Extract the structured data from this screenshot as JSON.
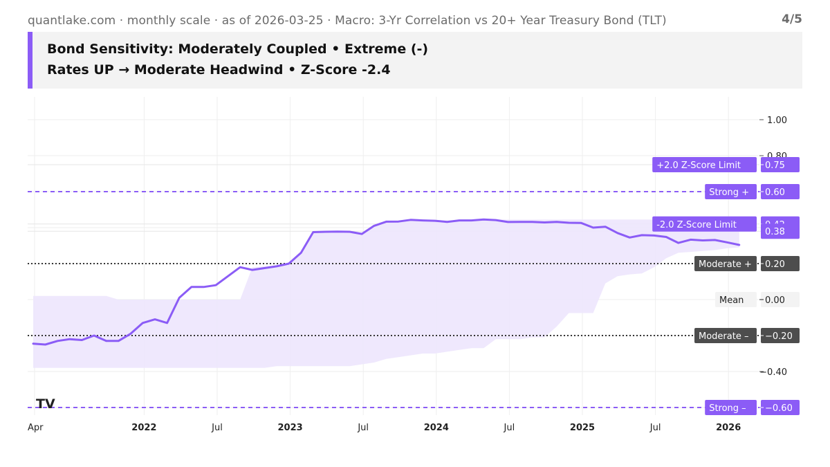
{
  "header": {
    "subtitle": "quantlake.com · monthly scale · as of 2026-03-25 · Macro: 3-Yr Correlation vs 20+ Year Treasury Bond (TLT)",
    "page": "4/5",
    "line1": "Bond Sensitivity: Moderately Coupled • Extreme (-)",
    "line2": "Rates UP → Moderate Headwind • Z-Score -2.4"
  },
  "colors": {
    "accent": "#8b5cf6",
    "line": "#8b5cf6",
    "band": "#ede6fd",
    "dark_label": "#4d4d4d",
    "grid": "#eeeeee"
  },
  "watermark": "TV",
  "chart_data": {
    "type": "line",
    "ylim": [
      -0.62,
      1.05
    ],
    "yticks": [
      {
        "v": 1.0,
        "label": "1.00"
      },
      {
        "v": 0.8,
        "label": "0.80"
      },
      {
        "v": -0.4,
        "label": "−0.40"
      }
    ],
    "xticks": [
      {
        "t": 0,
        "label": "Apr",
        "bold": false
      },
      {
        "t": 9,
        "label": "2022",
        "bold": true
      },
      {
        "t": 15,
        "label": "Jul",
        "bold": false
      },
      {
        "t": 21,
        "label": "2023",
        "bold": true
      },
      {
        "t": 27,
        "label": "Jul",
        "bold": false
      },
      {
        "t": 33,
        "label": "2024",
        "bold": true
      },
      {
        "t": 39,
        "label": "Jul",
        "bold": false
      },
      {
        "t": 45,
        "label": "2025",
        "bold": true
      },
      {
        "t": 51,
        "label": "Jul",
        "bold": false
      },
      {
        "t": 57,
        "label": "2026",
        "bold": true
      }
    ],
    "series": [
      {
        "t0": 0,
        "values": [
          -0.245,
          -0.25,
          -0.23,
          -0.22,
          -0.225,
          -0.2,
          -0.23,
          -0.23,
          -0.19,
          -0.13,
          -0.11,
          -0.13,
          0.01,
          0.07,
          0.07,
          0.08,
          0.13,
          0.18,
          0.165,
          0.175,
          0.185,
          0.2,
          0.26,
          0.375,
          0.377,
          0.378,
          0.377,
          0.365,
          0.41,
          0.433,
          0.434,
          0.443,
          0.44,
          0.438,
          0.432,
          0.44,
          0.44,
          0.445,
          0.442,
          0.431,
          0.432,
          0.432,
          0.429,
          0.432,
          0.427,
          0.426,
          0.4,
          0.405,
          0.37,
          0.345,
          0.358,
          0.356,
          0.348,
          0.315,
          0.333,
          0.329,
          0.331,
          0.318,
          0.304
        ]
      }
    ],
    "band": {
      "t0": 0,
      "upper": [
        0.02,
        0.02,
        0.02,
        0.02,
        0.02,
        0.02,
        0.02,
        0.0,
        0.0,
        0.0,
        0.0,
        0.0,
        0.0,
        0.0,
        0.0,
        0.0,
        0.0,
        0.0,
        0.18,
        0.185,
        0.19,
        0.2,
        0.26,
        0.375,
        0.377,
        0.378,
        0.377,
        0.365,
        0.41,
        0.433,
        0.434,
        0.443,
        0.44,
        0.44,
        0.44,
        0.44,
        0.44,
        0.445,
        0.445,
        0.445,
        0.445,
        0.445,
        0.445,
        0.445,
        0.445,
        0.445,
        0.445,
        0.445,
        0.445,
        0.445,
        0.445,
        0.445,
        0.445,
        0.445,
        0.445,
        0.445,
        0.445,
        0.445,
        0.445
      ],
      "lower": [
        -0.38,
        -0.38,
        -0.38,
        -0.38,
        -0.38,
        -0.38,
        -0.38,
        -0.38,
        -0.38,
        -0.38,
        -0.38,
        -0.38,
        -0.38,
        -0.38,
        -0.38,
        -0.38,
        -0.38,
        -0.38,
        -0.38,
        -0.38,
        -0.37,
        -0.37,
        -0.37,
        -0.37,
        -0.37,
        -0.37,
        -0.37,
        -0.36,
        -0.35,
        -0.33,
        -0.32,
        -0.31,
        -0.3,
        -0.3,
        -0.29,
        -0.28,
        -0.27,
        -0.27,
        -0.22,
        -0.22,
        -0.22,
        -0.21,
        -0.21,
        -0.15,
        -0.075,
        -0.075,
        -0.075,
        0.09,
        0.13,
        0.14,
        0.145,
        0.18,
        0.23,
        0.26,
        0.265,
        0.27,
        0.275,
        0.285,
        0.29
      ]
    },
    "ref_lines": [
      {
        "v": 0.6,
        "label": "Strong +",
        "value_label": "0.60",
        "style": "purple",
        "line": true,
        "yadj": 0.6
      },
      {
        "v": 0.2,
        "label": "Moderate +",
        "value_label": "0.20",
        "style": "dark",
        "line": true,
        "yadj": 0.2
      },
      {
        "v": -0.2,
        "label": "Moderate –",
        "value_label": "−0.20",
        "style": "dark",
        "line": true,
        "yadj": -0.2
      },
      {
        "v": -0.6,
        "label": "Strong –",
        "value_label": "−0.60",
        "style": "purple",
        "line": true,
        "yadj": -0.6
      },
      {
        "v": 0.0,
        "label": "Mean",
        "value_label": "0.00",
        "style": "light",
        "line": false,
        "yadj": 0.0
      },
      {
        "v": 0.75,
        "label": "+2.0 Z-Score Limit",
        "value_label": "0.75",
        "style": "purple",
        "line": false,
        "yadj": 0.75
      },
      {
        "v": 0.42,
        "label": "-2.0 Z-Score Limit",
        "value_label": "0.42",
        "style": "purple",
        "line": false,
        "yadj": 0.42
      },
      {
        "v": 0.38,
        "label": "",
        "value_label": "0.38",
        "style": "purple",
        "line": false,
        "yadj": 0.38
      }
    ]
  }
}
